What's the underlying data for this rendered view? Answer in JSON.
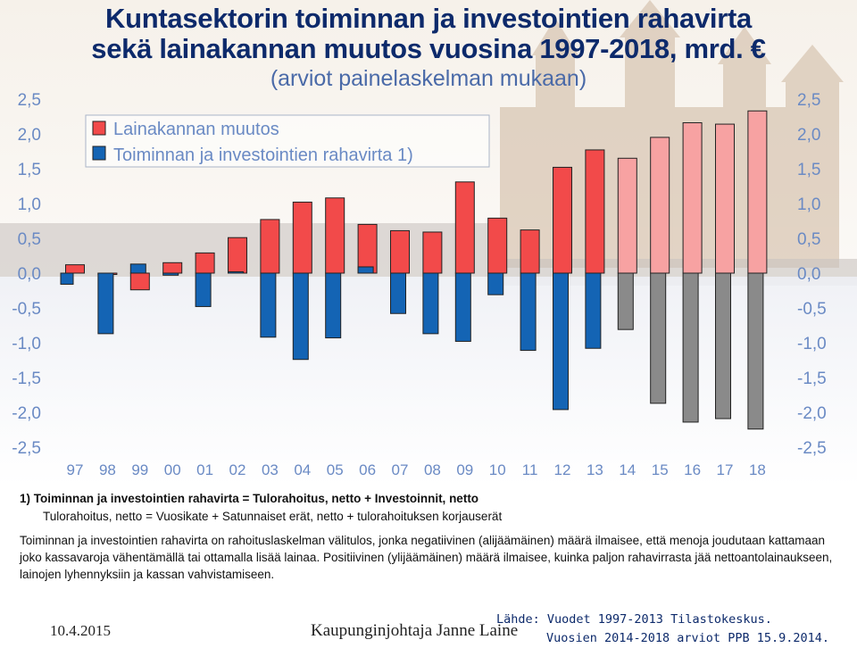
{
  "title_line1": "Kuntasektorin toiminnan ja investointien rahavirta",
  "title_line2": "sekä lainakannan muutos vuosina 1997-2018, mrd. €",
  "subtitle": "(arviot painelaskelman mukaan)",
  "footnote": {
    "line1": "1) Toiminnan ja investointien rahavirta = Tulorahoitus, netto + Investoinnit, netto",
    "line2": "Tulorahoitus, netto = Vuosikate + Satunnaiset erät, netto + tulorahoituksen korjauserät"
  },
  "paragraph": "Toiminnan ja investointien rahavirta on rahoituslaskelman välitulos, jonka negatiivinen (alijäämäinen) määrä ilmaisee, että menoja joudutaan kattamaan joko kassavaroja vähentämällä tai ottamalla lisää lainaa. Positiivinen (ylijäämäinen) määrä ilmaisee, kuinka paljon rahavirrasta jää nettoantolainaukseen, lainojen lyhennyksiin ja kassan vahvistamiseen.",
  "footer": {
    "date": "10.4.2015",
    "author": "Kaupunginjohtaja Janne Laine",
    "source_line1": "Lähde: Vuodet 1997-2013 Tilastokeskus.",
    "source_line2": "Vuosien 2014-2018 arviot PPB 15.9.2014."
  },
  "colors": {
    "loan_actual": "#f24a4a",
    "loan_estimate": "#f7a2a2",
    "cash_actual": "#1464b4",
    "cash_estimate": "#8a8a8a",
    "title": "#0d2a6b",
    "axis_text": "#6a8ac4"
  },
  "chart_data": {
    "type": "bar",
    "categories": [
      "97",
      "98",
      "99",
      "00",
      "01",
      "02",
      "03",
      "04",
      "05",
      "06",
      "07",
      "08",
      "09",
      "10",
      "11",
      "12",
      "13",
      "14",
      "15",
      "16",
      "17",
      "18"
    ],
    "y_tick_labels": [
      "2,5",
      "2,0",
      "1,5",
      "1,0",
      "0,5",
      "0,0",
      "-0,5",
      "-1,0",
      "-1,5",
      "-2,0",
      "-2,5"
    ],
    "ylim": [
      -2.5,
      2.5
    ],
    "estimate_from_index": 17,
    "series": [
      {
        "name": "Lainakannan muutos",
        "values": [
          0.12,
          0.0,
          -0.24,
          0.15,
          0.29,
          0.51,
          0.77,
          1.02,
          1.08,
          0.7,
          0.61,
          0.59,
          1.31,
          0.79,
          0.62,
          1.52,
          1.77,
          1.65,
          1.95,
          2.16,
          2.14,
          2.33
        ]
      },
      {
        "name": "Toiminnan ja investointien rahavirta 1)",
        "values": [
          -0.16,
          -0.87,
          0.13,
          -0.03,
          -0.48,
          0.02,
          -0.92,
          -1.24,
          -0.93,
          0.09,
          -0.58,
          -0.87,
          -0.98,
          -0.31,
          -1.11,
          -1.96,
          -1.08,
          -0.81,
          -1.87,
          -2.14,
          -2.09,
          -2.24
        ]
      }
    ],
    "legend": [
      "Lainakannan muutos",
      "Toiminnan ja investointien rahavirta 1)"
    ],
    "legend_placement": "top-left"
  }
}
